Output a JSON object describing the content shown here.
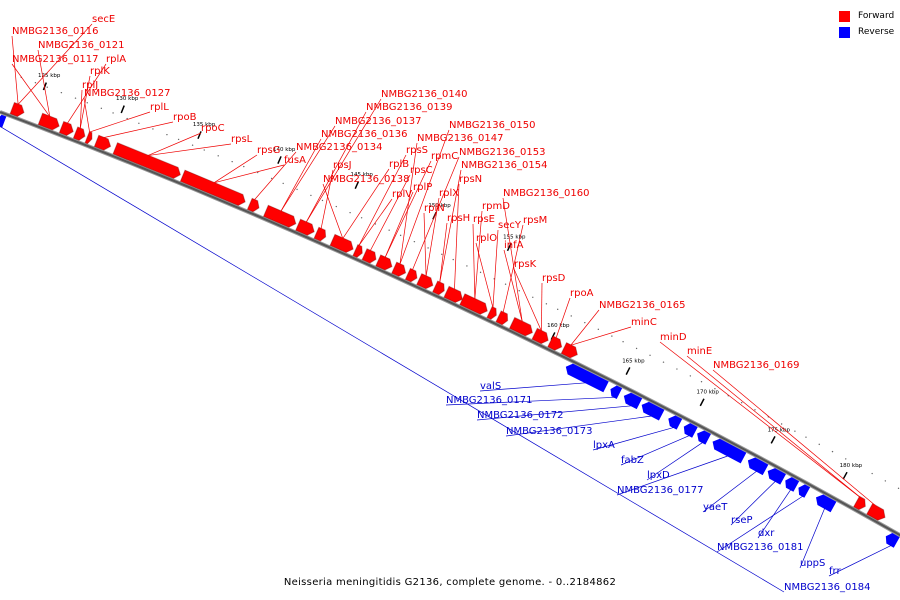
{
  "legend": {
    "forward": {
      "label": "Forward",
      "color": "#ff0000"
    },
    "reverse": {
      "label": "Reverse",
      "color": "#0000ff"
    }
  },
  "caption": "Neisseria meningitidis G2136, complete genome. - 0..2184862",
  "ticks": [
    "125 kbp",
    "130 kbp",
    "135 kbp",
    "140 kbp",
    "145 kbp",
    "150 kbp",
    "155 kbp",
    "160 kbp",
    "165 kbp",
    "170 kbp",
    "175 kbp",
    "180 kbp"
  ],
  "forward_labels": [
    "NMBG2136_0116",
    "secE",
    "NMBG2136_0121",
    "NMBG2136_0117",
    "rplA",
    "rplK",
    "rplJ",
    "NMBG2136_0127",
    "rplL",
    "rpoB",
    "rpoC",
    "rpsL",
    "rpsG",
    "fusA",
    "NMBG2136_0134",
    "NMBG2136_0136",
    "NMBG2136_0137",
    "NMBG2136_0139",
    "NMBG2136_0140",
    "rpsJ",
    "NMBG2136_0138",
    "rplB",
    "rplV",
    "rpsS",
    "rpsC",
    "rplP",
    "rpmC",
    "NMBG2136_0147",
    "NMBG2136_0150",
    "NMBG2136_0153",
    "rplX",
    "rplN",
    "rpsH",
    "NMBG2136_0154",
    "rpsN",
    "rpmD",
    "rpsE",
    "rplO",
    "secY",
    "rpsM",
    "NMBG2136_0160",
    "infA",
    "rpsK",
    "rpsD",
    "rpoA",
    "NMBG2136_0165",
    "minC",
    "minD",
    "minE",
    "NMBG2136_0169"
  ],
  "reverse_labels": [
    "valS",
    "NMBG2136_0171",
    "NMBG2136_0172",
    "NMBG2136_0173",
    "lpxA",
    "fabZ",
    "lpxD",
    "NMBG2136_0177",
    "yaeT",
    "rseP",
    "dxr",
    "NMBG2136_0181",
    "uppS",
    "frr",
    "NMBG2136_0184"
  ]
}
